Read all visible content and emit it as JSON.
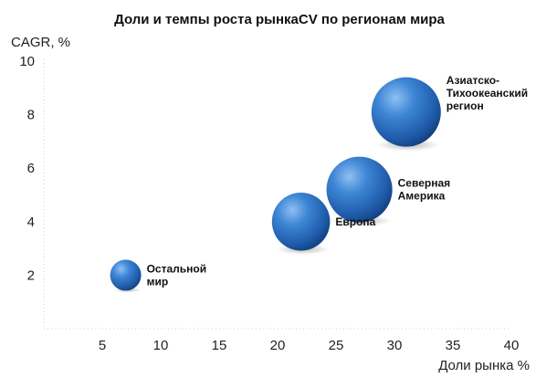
{
  "chart_data": {
    "type": "bubble",
    "title": "Доли и темпы роста рынкаCV по регионам мира",
    "xlabel": "Доли рынка %",
    "ylabel": "CAGR, %",
    "xlim": [
      0,
      40
    ],
    "ylim": [
      0,
      10
    ],
    "x_ticks": [
      "5",
      "10",
      "15",
      "20",
      "25",
      "30",
      "35",
      "40"
    ],
    "y_ticks": [
      "2",
      "4",
      "6",
      "8",
      "10"
    ],
    "grid": false,
    "bubble_color": "#2f6fc0",
    "points": [
      {
        "label_lines": [
          "Остальной",
          "мир"
        ],
        "x": 7,
        "y": 2,
        "size": 1
      },
      {
        "label_lines": [
          "Европа"
        ],
        "x": 22,
        "y": 4,
        "size": 3.5
      },
      {
        "label_lines": [
          "Северная",
          "Америка"
        ],
        "x": 27,
        "y": 5.2,
        "size": 4.5
      },
      {
        "label_lines": [
          "Азиатско-",
          "Тихоокеанский",
          "регион"
        ],
        "x": 31,
        "y": 8.1,
        "size": 5
      }
    ]
  }
}
